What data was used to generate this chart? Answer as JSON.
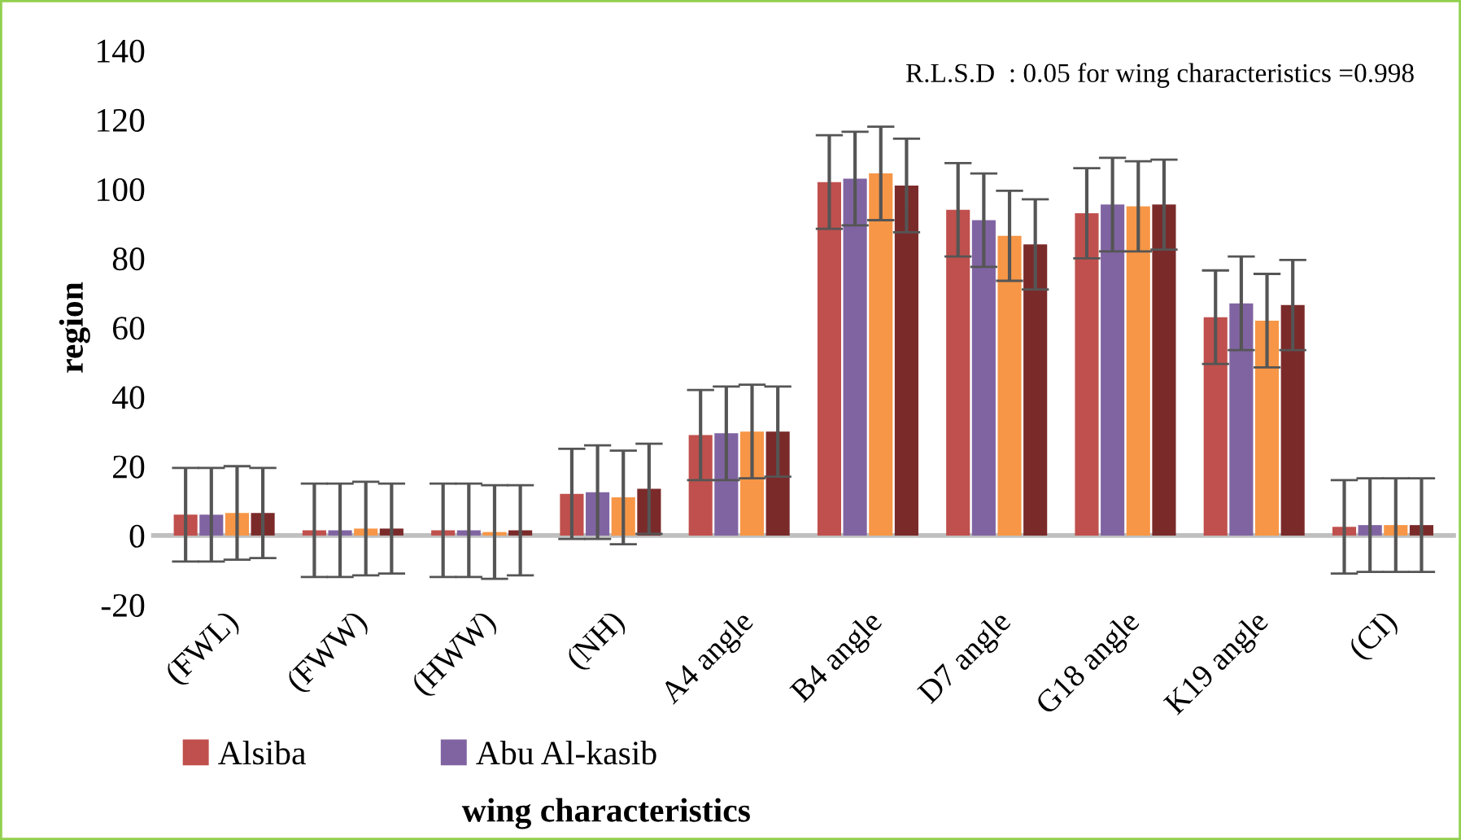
{
  "chart_data": {
    "type": "bar",
    "xlabel": "wing characteristics",
    "ylabel": "region",
    "categories": [
      "(FWL)",
      "(FWW)",
      "(HWW)",
      "(NH)",
      "A4 angle",
      "B4 angle",
      "D7 angle",
      "G18 angle",
      "K19 angle",
      "(CI)"
    ],
    "series": [
      {
        "name": "Alsiba",
        "color": "#c0504d",
        "values": [
          6,
          1.5,
          1.5,
          12,
          29,
          102,
          94,
          93,
          63,
          2.5
        ],
        "errors": [
          13.5,
          13.5,
          13.5,
          13,
          13,
          13.5,
          13.5,
          13,
          13.5,
          13.5
        ]
      },
      {
        "name": "Abu Al-kasib",
        "color": "#8064a2",
        "values": [
          6,
          1.5,
          1.5,
          12.5,
          29.5,
          103,
          91,
          95.5,
          67,
          3
        ],
        "errors": [
          13.5,
          13.5,
          13.5,
          13.5,
          13.5,
          13.5,
          13.5,
          13.5,
          13.5,
          13.5
        ]
      },
      {
        "color": "#f79646",
        "values": [
          6.5,
          2,
          1,
          11,
          30,
          104.5,
          86.5,
          95,
          62,
          3
        ],
        "errors": [
          13.5,
          13.5,
          13.5,
          13.5,
          13.5,
          13.5,
          13,
          13,
          13.5,
          13.5
        ]
      },
      {
        "color": "#7b2a2a",
        "values": [
          6.5,
          2,
          1.5,
          13.5,
          30,
          101,
          84,
          95.5,
          66.5,
          3
        ],
        "errors": [
          13,
          13,
          13,
          13,
          13,
          13.5,
          13,
          13,
          13,
          13.5
        ]
      }
    ],
    "ylim": [
      -20,
      140
    ],
    "yticks": [
      -20,
      0,
      20,
      40,
      60,
      80,
      100,
      120,
      140
    ],
    "grid": false,
    "legend": "bottom left",
    "annotations": [
      "R.L.S.D  : 0.05 for wing characteristics =0.998"
    ]
  }
}
